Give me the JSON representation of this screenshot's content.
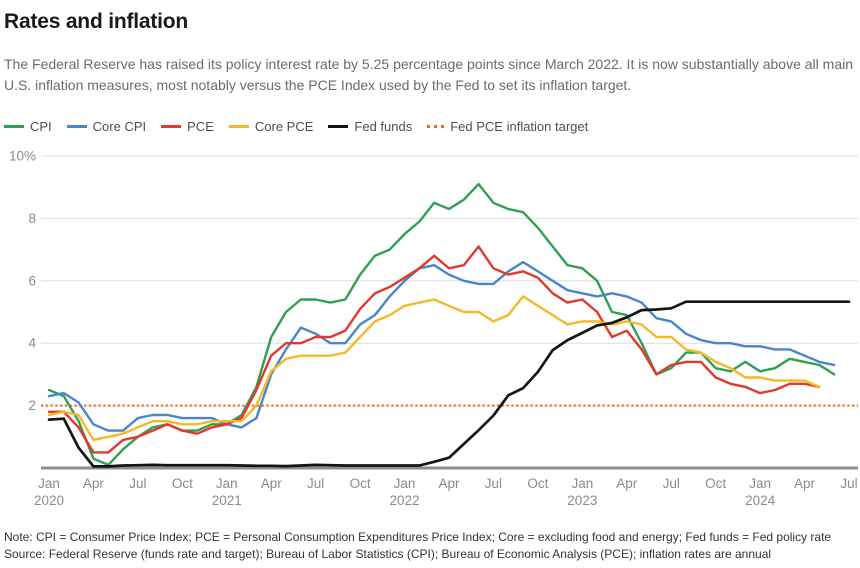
{
  "header": {
    "title": "Rates and inflation",
    "subtitle": "The Federal Reserve has raised its policy interest rate by 5.25 percentage points since March 2022. It is now substantially above all main U.S. inflation measures, most notably versus the PCE Index used by the Fed to set its inflation target."
  },
  "legend": [
    {
      "label": "CPI",
      "color": "#2fa052",
      "style": "solid"
    },
    {
      "label": "Core CPI",
      "color": "#4a86c6",
      "style": "solid"
    },
    {
      "label": "PCE",
      "color": "#e2382e",
      "style": "solid"
    },
    {
      "label": "Core PCE",
      "color": "#f3b927",
      "style": "solid"
    },
    {
      "label": "Fed funds",
      "color": "#141414",
      "style": "solid"
    },
    {
      "label": "Fed PCE inflation target",
      "color": "#f2691e",
      "style": "dotted"
    }
  ],
  "chart_data": {
    "type": "line",
    "title": "Rates and inflation",
    "x_frequency": "monthly",
    "x_start": "Jan 2020",
    "x_end": "Jul 2024",
    "ylim": [
      0,
      10
    ],
    "grid": "horizontal",
    "legend_position": "top-left",
    "unit": "%",
    "axis_color": "#8e8e8e",
    "grid_color": "#dedede",
    "tick_label_color": "#8b8b8b",
    "yticks": [
      {
        "v": 2,
        "label": "2"
      },
      {
        "v": 4,
        "label": "4"
      },
      {
        "v": 6,
        "label": "6"
      },
      {
        "v": 8,
        "label": "8"
      },
      {
        "v": 10,
        "label": "10%"
      }
    ],
    "xticks": [
      {
        "i": 0,
        "m": "Jan",
        "y": "2020"
      },
      {
        "i": 3,
        "m": "Apr"
      },
      {
        "i": 6,
        "m": "Jul"
      },
      {
        "i": 9,
        "m": "Oct"
      },
      {
        "i": 12,
        "m": "Jan",
        "y": "2021"
      },
      {
        "i": 15,
        "m": "Apr"
      },
      {
        "i": 18,
        "m": "Jul"
      },
      {
        "i": 21,
        "m": "Oct"
      },
      {
        "i": 24,
        "m": "Jan",
        "y": "2022"
      },
      {
        "i": 27,
        "m": "Apr"
      },
      {
        "i": 30,
        "m": "Jul"
      },
      {
        "i": 33,
        "m": "Oct"
      },
      {
        "i": 36,
        "m": "Jan",
        "y": "2023"
      },
      {
        "i": 39,
        "m": "Apr"
      },
      {
        "i": 42,
        "m": "Jul"
      },
      {
        "i": 45,
        "m": "Oct"
      },
      {
        "i": 48,
        "m": "Jan",
        "y": "2024"
      },
      {
        "i": 51,
        "m": "Apr"
      },
      {
        "i": 54,
        "m": "Jul"
      }
    ],
    "series": [
      {
        "name": "CPI",
        "color": "#2fa052",
        "values": [
          2.5,
          2.3,
          1.5,
          0.3,
          0.1,
          0.6,
          1.0,
          1.3,
          1.4,
          1.2,
          1.2,
          1.4,
          1.4,
          1.7,
          2.6,
          4.2,
          5.0,
          5.4,
          5.4,
          5.3,
          5.4,
          6.2,
          6.8,
          7.0,
          7.5,
          7.9,
          8.5,
          8.3,
          8.6,
          9.1,
          8.5,
          8.3,
          8.2,
          7.7,
          7.1,
          6.5,
          6.4,
          6.0,
          5.0,
          4.9,
          4.0,
          3.0,
          3.2,
          3.7,
          3.7,
          3.2,
          3.1,
          3.4,
          3.1,
          3.2,
          3.5,
          3.4,
          3.3,
          3.0
        ]
      },
      {
        "name": "Core CPI",
        "color": "#4a86c6",
        "values": [
          2.3,
          2.4,
          2.1,
          1.4,
          1.2,
          1.2,
          1.6,
          1.7,
          1.7,
          1.6,
          1.6,
          1.6,
          1.4,
          1.3,
          1.6,
          3.0,
          3.8,
          4.5,
          4.3,
          4.0,
          4.0,
          4.6,
          4.9,
          5.5,
          6.0,
          6.4,
          6.5,
          6.2,
          6.0,
          5.9,
          5.9,
          6.3,
          6.6,
          6.3,
          6.0,
          5.7,
          5.6,
          5.5,
          5.6,
          5.5,
          5.3,
          4.8,
          4.7,
          4.3,
          4.1,
          4.0,
          4.0,
          3.9,
          3.9,
          3.8,
          3.8,
          3.6,
          3.4,
          3.3
        ]
      },
      {
        "name": "PCE",
        "color": "#e2382e",
        "values": [
          1.8,
          1.8,
          1.3,
          0.5,
          0.5,
          0.9,
          1.0,
          1.2,
          1.4,
          1.2,
          1.1,
          1.3,
          1.4,
          1.6,
          2.5,
          3.6,
          4.0,
          4.0,
          4.2,
          4.2,
          4.4,
          5.1,
          5.6,
          5.8,
          6.1,
          6.4,
          6.8,
          6.4,
          6.5,
          7.1,
          6.4,
          6.2,
          6.3,
          6.1,
          5.6,
          5.3,
          5.4,
          5.0,
          4.2,
          4.4,
          3.8,
          3.0,
          3.3,
          3.4,
          3.4,
          2.9,
          2.7,
          2.6,
          2.4,
          2.5,
          2.7,
          2.7,
          2.6
        ]
      },
      {
        "name": "Core PCE",
        "color": "#f3b927",
        "values": [
          1.7,
          1.8,
          1.7,
          0.9,
          1.0,
          1.1,
          1.3,
          1.5,
          1.5,
          1.4,
          1.4,
          1.5,
          1.5,
          1.5,
          2.0,
          3.1,
          3.5,
          3.6,
          3.6,
          3.6,
          3.7,
          4.2,
          4.7,
          4.9,
          5.2,
          5.3,
          5.4,
          5.2,
          5.0,
          5.0,
          4.7,
          4.9,
          5.5,
          5.2,
          4.9,
          4.6,
          4.7,
          4.7,
          4.6,
          4.7,
          4.6,
          4.2,
          4.2,
          3.8,
          3.7,
          3.4,
          3.2,
          2.9,
          2.9,
          2.8,
          2.8,
          2.8,
          2.6
        ]
      },
      {
        "name": "Fed funds",
        "color": "#141414",
        "values": [
          1.55,
          1.58,
          0.65,
          0.05,
          0.05,
          0.08,
          0.09,
          0.1,
          0.09,
          0.09,
          0.09,
          0.09,
          0.09,
          0.08,
          0.07,
          0.07,
          0.06,
          0.08,
          0.1,
          0.09,
          0.08,
          0.08,
          0.08,
          0.08,
          0.08,
          0.08,
          0.2,
          0.33,
          0.77,
          1.21,
          1.68,
          2.33,
          2.56,
          3.08,
          3.78,
          4.1,
          4.33,
          4.57,
          4.65,
          4.83,
          5.06,
          5.08,
          5.12,
          5.33,
          5.33,
          5.33,
          5.33,
          5.33,
          5.33,
          5.33,
          5.33,
          5.33,
          5.33,
          5.33,
          5.33
        ]
      }
    ],
    "target_line": {
      "name": "Fed PCE inflation target",
      "color": "#f2691e",
      "style": "dotted",
      "value": 2
    }
  },
  "footer": {
    "note": "Note: CPI = Consumer Price Index; PCE = Personal Consumption Expenditures Price Index; Core = excluding food and energy; Fed funds = Fed policy rate",
    "source": "Source: Federal Reserve (funds rate and target); Bureau of Labor Statistics (CPI); Bureau of Economic Analysis (PCE); inflation rates are annual"
  }
}
